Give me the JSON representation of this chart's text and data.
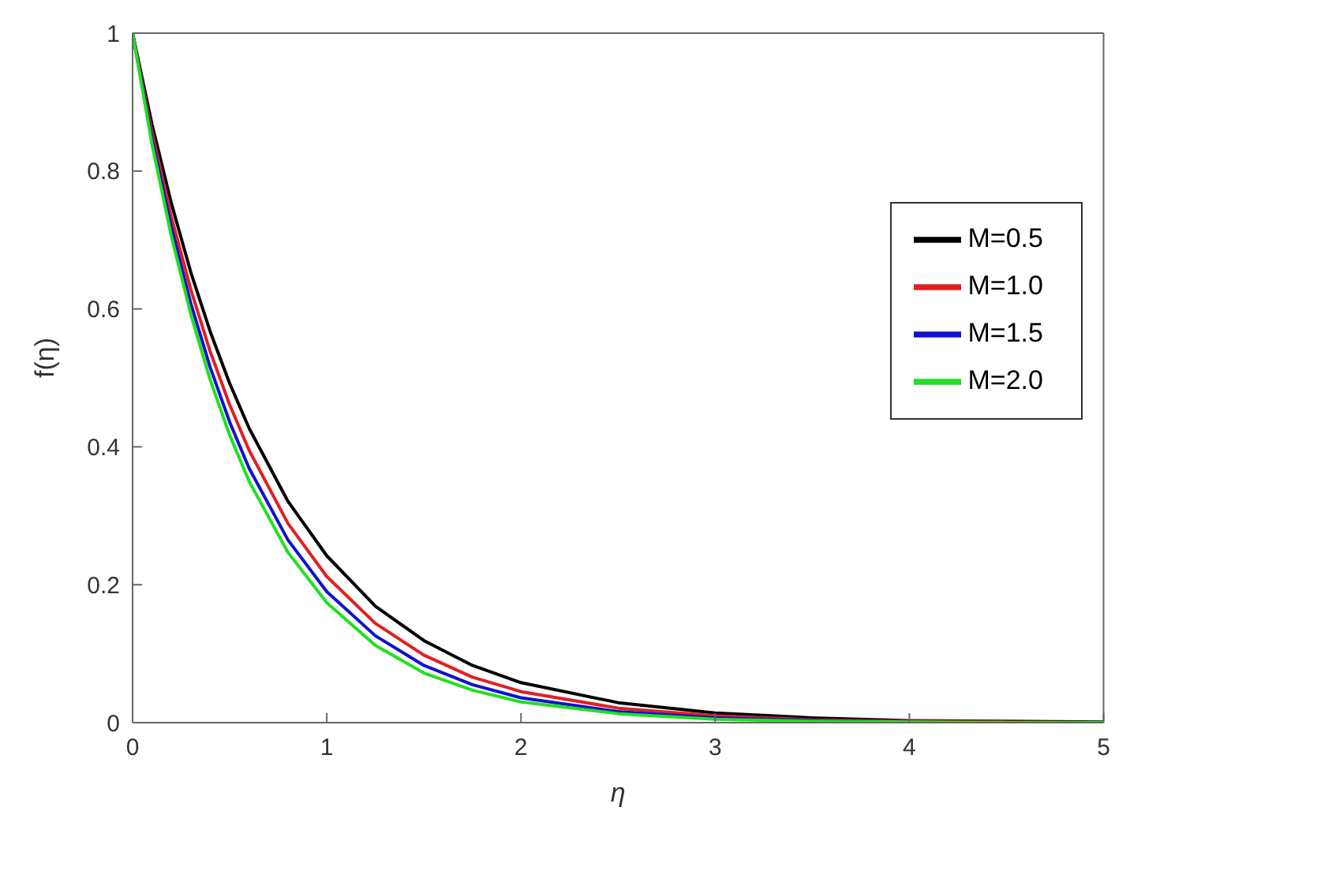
{
  "chart_data": {
    "type": "line",
    "xlabel": "η",
    "ylabel": "f(η)",
    "x": [
      0,
      0.1,
      0.2,
      0.3,
      0.4,
      0.5,
      0.6,
      0.8,
      1,
      1.25,
      1.5,
      1.75,
      2,
      2.5,
      3,
      3.5,
      4,
      4.5,
      5
    ],
    "series": [
      {
        "name": "M=0.5",
        "color": "#000000",
        "values": [
          1,
          0.868,
          0.753,
          0.653,
          0.567,
          0.492,
          0.427,
          0.321,
          0.242,
          0.169,
          0.119,
          0.083,
          0.058,
          0.029,
          0.014,
          0.007,
          0.003,
          0.002,
          0.001
        ]
      },
      {
        "name": "M=1.0",
        "color": "#e02020",
        "values": [
          1,
          0.856,
          0.733,
          0.628,
          0.538,
          0.461,
          0.395,
          0.289,
          0.212,
          0.144,
          0.098,
          0.066,
          0.045,
          0.021,
          0.01,
          0.004,
          0.002,
          0.001,
          0
        ]
      },
      {
        "name": "M=1.5",
        "color": "#1010d0",
        "values": [
          1,
          0.847,
          0.718,
          0.608,
          0.515,
          0.436,
          0.369,
          0.265,
          0.19,
          0.126,
          0.083,
          0.055,
          0.036,
          0.016,
          0.007,
          0.003,
          0.001,
          null,
          null
        ]
      },
      {
        "name": "M=2.0",
        "color": "#20e020",
        "values": [
          1,
          0.839,
          0.705,
          0.592,
          0.497,
          0.417,
          0.35,
          0.247,
          0.174,
          0.112,
          0.072,
          0.047,
          0.03,
          0.013,
          0.005,
          0.002,
          0.001,
          0,
          0
        ]
      }
    ],
    "xlim": [
      0,
      5
    ],
    "xticks": [
      0,
      1,
      2,
      3,
      4,
      5
    ],
    "ylim": [
      0,
      1
    ],
    "yticks": [
      0,
      0.2,
      0.4,
      0.6,
      0.8,
      1
    ],
    "grid": false,
    "legend": "top right",
    "marker": "none",
    "line_style": "solid"
  }
}
